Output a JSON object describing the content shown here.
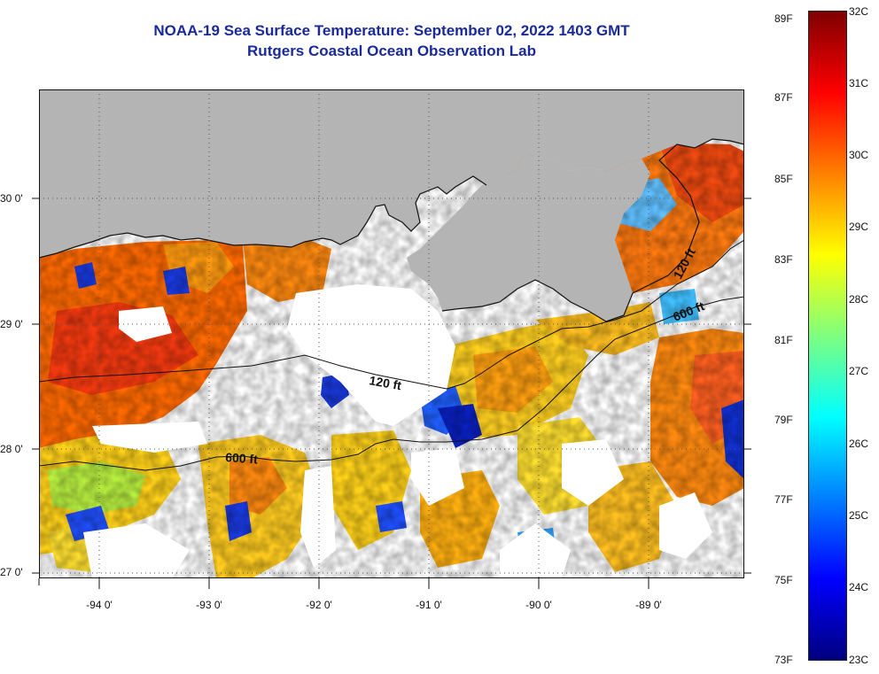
{
  "title": {
    "line1": "NOAA-19 Sea Surface Temperature:  September 02, 2022 1403 GMT",
    "line2": "Rutgers Coastal Ocean Observation Lab"
  },
  "colors": {
    "title": "#1a2a9a",
    "land": "#b4b4b4",
    "cloud": "#ffffff",
    "contour": "#111111"
  },
  "map": {
    "latitude_labels": [
      "30 0'",
      "29 0'",
      "28 0'",
      "27 0'"
    ],
    "longitude_labels": [
      "-94 0'",
      "-93 0'",
      "-92 0'",
      "-91 0'",
      "-90 0'",
      "-89 0'"
    ],
    "contour_labels": [
      "120 ft",
      "600 ft",
      "600 ft",
      "120 ft"
    ]
  },
  "colorbar": {
    "palette": [
      "#00007f",
      "#0000ff",
      "#0080ff",
      "#00ffff",
      "#7fff7f",
      "#ffff00",
      "#ff8000",
      "#ff0000",
      "#7f0000"
    ],
    "fahrenheit_labels": [
      "89F",
      "87F",
      "85F",
      "83F",
      "81F",
      "79F",
      "77F",
      "75F",
      "73F"
    ],
    "celsius_labels": [
      "32C",
      "31C",
      "30C",
      "29C",
      "28C",
      "27C",
      "26C",
      "25C",
      "24C",
      "23C"
    ]
  }
}
